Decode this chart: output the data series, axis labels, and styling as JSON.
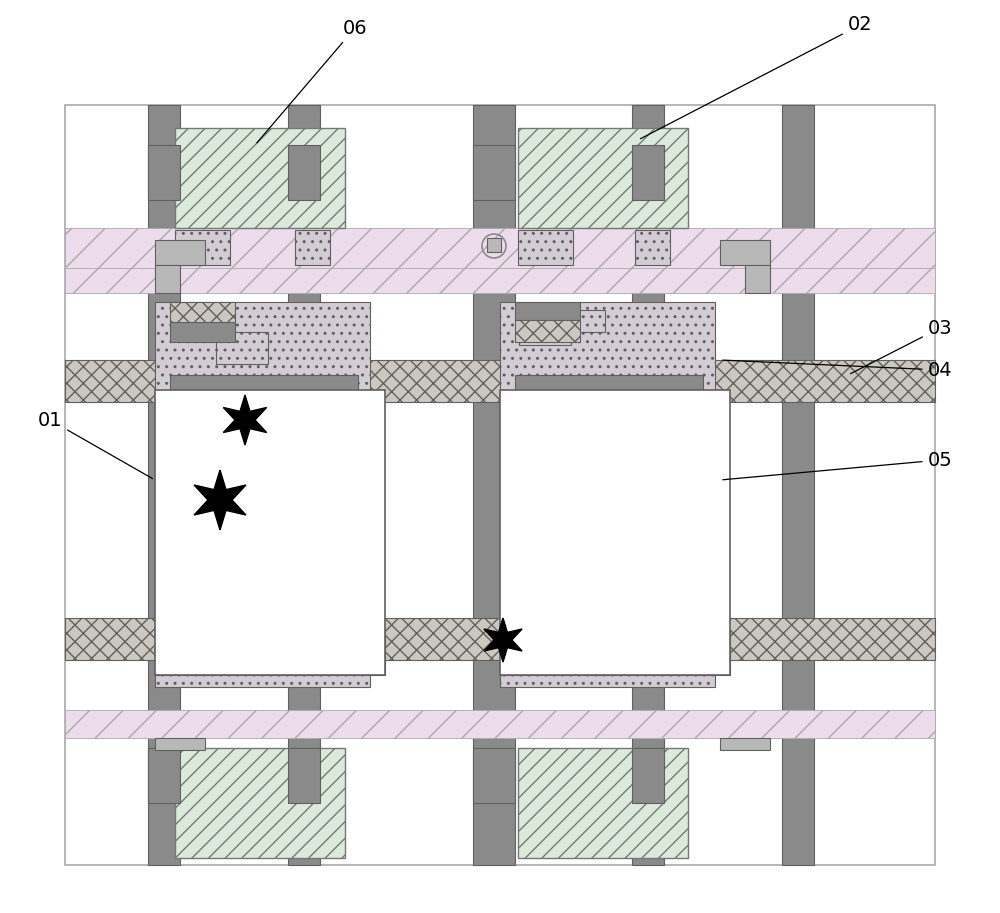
{
  "bg": "#ffffff",
  "col_gray": "#8c8c8c",
  "col_gray_dark": "#707070",
  "col_gray_med": "#a0a0a0",
  "col_gray_light": "#c0c0c0",
  "col_pink_fill": "#e8d8e8",
  "col_green_fill": "#d0e8d0",
  "col_diag_fill": "#dce8dc",
  "col_cross_fill": "#d8d0d0",
  "col_dot_fill": "#e0dce0",
  "col_white": "#ffffff",
  "border_lw": 1.2,
  "figw": 10.0,
  "figh": 9.13
}
